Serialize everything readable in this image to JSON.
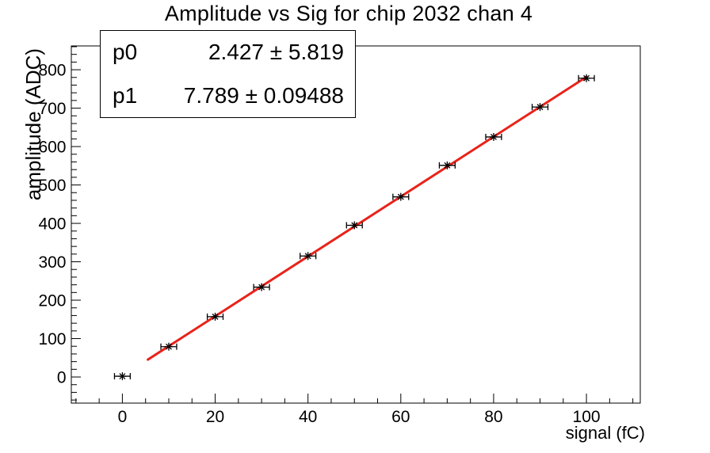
{
  "title": "Amplitude vs Sig for chip 2032 chan 4",
  "stats_box": {
    "rows": [
      {
        "label": "p0",
        "value": "2.427 ± 5.819"
      },
      {
        "label": "p1",
        "value": "7.789 ± 0.09488"
      }
    ]
  },
  "axes": {
    "x_title": "signal (fC)",
    "y_title": "amplitude (ADC)"
  },
  "colors": {
    "fit_line": "#e8231a",
    "marker": "#000000",
    "frame": "#000000",
    "background": "#ffffff"
  },
  "chart_data": {
    "type": "scatter",
    "title": "Amplitude vs Sig for chip 2032 chan 4",
    "xlabel": "signal (fC)",
    "ylabel": "amplitude (ADC)",
    "xlim": [
      -11,
      111.6
    ],
    "ylim": [
      -68,
      862
    ],
    "grid": false,
    "x_major_ticks": [
      0,
      20,
      40,
      60,
      80,
      100
    ],
    "x_minor_step": 5,
    "y_major_ticks": [
      0,
      100,
      200,
      300,
      400,
      500,
      600,
      700,
      800
    ],
    "y_minor_step": 20,
    "x": [
      0,
      10,
      20,
      30,
      40,
      50,
      60,
      70,
      80,
      90,
      100
    ],
    "y": [
      2,
      79,
      157,
      234,
      315,
      395,
      469,
      551,
      625,
      703,
      778
    ],
    "xerr": 1.7,
    "marker_style": "asterisk",
    "fit": {
      "type": "linear",
      "p0": 2.427,
      "p0_err": 5.819,
      "p1": 7.789,
      "p1_err": 0.09488,
      "x_start": 5.5,
      "x_end": 100
    }
  }
}
